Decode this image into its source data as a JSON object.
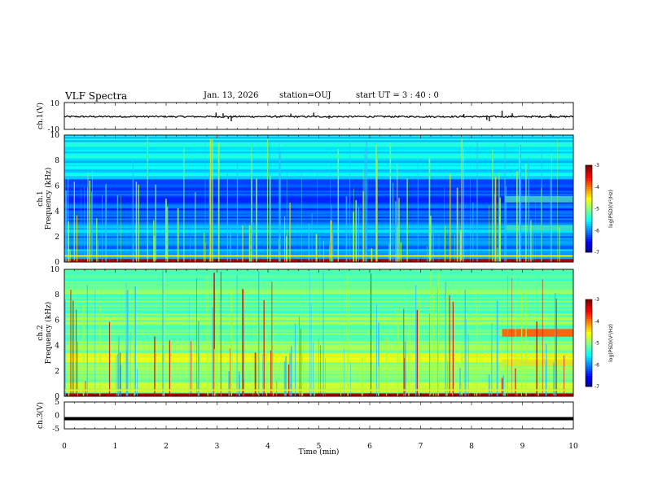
{
  "header": {
    "title": "VLF Spectra",
    "date": "Jan. 13, 2026",
    "station": "station=OUJ",
    "start_ut": "start  UT =   3 : 40 : 0"
  },
  "chart_data": [
    {
      "type": "line",
      "name": "ch1-waveform",
      "ylabel": "ch.1(V)",
      "ylim": [
        -10,
        10
      ],
      "yticks": [
        "10",
        "-10"
      ],
      "baseline": -0.5,
      "spikes": [
        {
          "t": 2.98,
          "v": 2.5
        },
        {
          "t": 3.02,
          "v": -1.5
        },
        {
          "t": 3.12,
          "v": 2
        },
        {
          "t": 3.22,
          "v": -2.2
        },
        {
          "t": 3.28,
          "v": -4
        },
        {
          "t": 4.45,
          "v": 1.8
        },
        {
          "t": 4.9,
          "v": 2.5
        },
        {
          "t": 5.2,
          "v": -2
        },
        {
          "t": 7.85,
          "v": 1.5
        },
        {
          "t": 8.3,
          "v": -3
        },
        {
          "t": 8.35,
          "v": -4
        },
        {
          "t": 8.6,
          "v": 4
        },
        {
          "t": 8.8,
          "v": 2
        },
        {
          "t": 9.55,
          "v": 1.5
        }
      ]
    },
    {
      "type": "heatmap",
      "name": "ch1-spectrogram",
      "ylabel_line1": "ch.1",
      "ylabel_line2": "Frequency (kHz)",
      "xlim": [
        0,
        10
      ],
      "ylim": [
        0,
        10
      ],
      "yticks": [
        "0",
        "2",
        "4",
        "6",
        "8",
        "10"
      ],
      "colorbar": {
        "label": "log(PSD)(V²/Hz)",
        "range": [
          -7,
          -3
        ],
        "ticks": [
          "-3",
          "-4",
          "-5",
          "-6",
          "-7"
        ]
      },
      "quiet_band_khz": [
        3.5,
        6.5
      ],
      "late_band_khz": [
        4.7,
        5.2
      ],
      "late_band_start_min": 8.65,
      "band_khz": [
        2.5,
        2.9
      ]
    },
    {
      "type": "heatmap",
      "name": "ch2-spectrogram",
      "ylabel_line1": "ch.2",
      "ylabel_line2": "Frequency (kHz)",
      "xlim": [
        0,
        10
      ],
      "ylim": [
        0,
        10
      ],
      "yticks": [
        "0",
        "2",
        "4",
        "6",
        "8",
        "10"
      ],
      "colorbar": {
        "label": "log(PSD)(V²/Hz)",
        "range": [
          -7,
          -3
        ],
        "ticks": [
          "-3",
          "-4",
          "-5",
          "-6",
          "-7"
        ]
      },
      "late_band_khz": [
        4.7,
        5.3
      ],
      "late_band_start_min": 8.6,
      "band_khz": [
        2.4,
        2.9
      ]
    },
    {
      "type": "line",
      "name": "ch3-waveform",
      "ylabel": "ch.3(V)",
      "ylim": [
        -5,
        5
      ],
      "yticks": [
        "5",
        "0",
        "-5"
      ],
      "baseline": -1.2,
      "xlabel": "Time (min)",
      "xticks": [
        "0",
        "1",
        "2",
        "3",
        "4",
        "5",
        "6",
        "7",
        "8",
        "9",
        "10"
      ],
      "xlim": [
        0,
        10
      ]
    }
  ]
}
